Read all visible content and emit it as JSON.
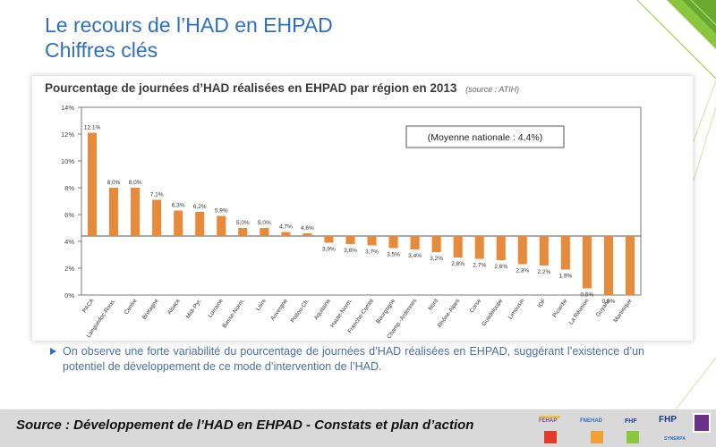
{
  "slide": {
    "title_line1": "Le recours de l’HAD en EHPAD",
    "title_line2": "Chiffres clés"
  },
  "chart_heading": "Pourcentage de journées d’HAD réalisées en EHPAD par région en 2013",
  "chart_source": "(source : ATIH)",
  "chart_data": {
    "type": "bar",
    "title": "Pourcentage de journées d’HAD réalisées en EHPAD par région en 2013",
    "categories": [
      "PACA",
      "Languedoc-Rous.",
      "Centre",
      "Bretagne",
      "Alsace",
      "Midi-Pyr.",
      "Lorraine",
      "Basse-Norm.",
      "Loire",
      "Auvergne",
      "Poitou-Ch.",
      "Aquitaine",
      "Haute-Norm.",
      "Franche-Comté",
      "Bourgogne",
      "Champ.-Ardennes",
      "Nord",
      "Rhône-Alpes",
      "Corse",
      "Guadeloupe",
      "Limousin",
      "IDF",
      "Picardie",
      "La Réunion",
      "Guyane",
      "Martinique"
    ],
    "values": [
      12.1,
      8.0,
      8.0,
      7.1,
      6.3,
      6.2,
      5.9,
      5.0,
      5.0,
      4.7,
      4.6,
      3.9,
      3.8,
      3.7,
      3.5,
      3.4,
      3.2,
      2.8,
      2.7,
      2.6,
      2.3,
      2.2,
      1.9,
      0.5,
      0.0,
      0.0
    ],
    "value_labels": [
      "12,1%",
      "8,0%",
      "8,0%",
      "7,1%",
      "6,3%",
      "6,2%",
      "5,9%",
      "5,0%",
      "5,0%",
      "4,7%",
      "4,6%",
      "3,9%",
      "3,8%",
      "3,7%",
      "3,5%",
      "3,4%",
      "3,2%",
      "2,8%",
      "2,7%",
      "2,6%",
      "2,3%",
      "2,2%",
      "1,9%",
      "0,5%",
      "0,0%",
      ""
    ],
    "baseline": 4.4,
    "ylim": [
      0,
      14
    ],
    "yticks": [
      "0%",
      "2%",
      "4%",
      "6%",
      "8%",
      "10%",
      "12%",
      "14%"
    ],
    "annotation": "(Moyenne nationale : 4,4%)",
    "bar_color": "#e58b3b",
    "grid": false
  },
  "bullet_text": "On observe une forte variabilité du pourcentage de journées d’HAD réalisées en EHPAD, suggérant l’existence d’un potentiel de développement de ce mode d’intervention de l’HAD.",
  "footer": {
    "source": "Source : Développement de l’HAD en EHPAD - Constats et plan d’action",
    "logos": [
      "FEHAP",
      "FNEHAD",
      "FHF",
      "FHP",
      "SYNERPA"
    ]
  },
  "colors": {
    "title": "#2f6fbd",
    "accent_green": "#8cc63f",
    "bar": "#e58b3b"
  }
}
